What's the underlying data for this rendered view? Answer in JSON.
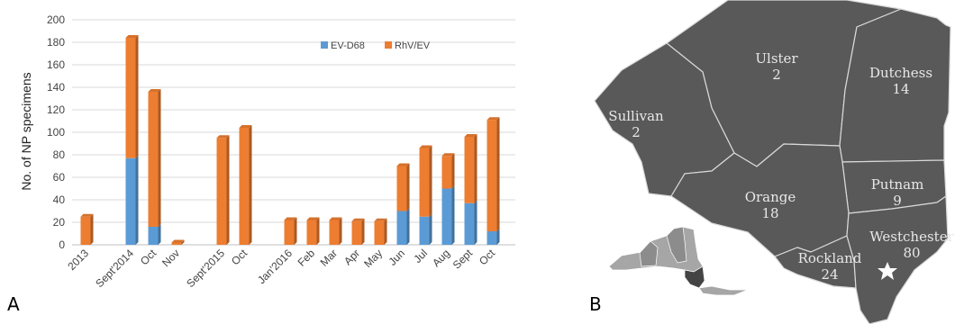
{
  "panels": {
    "a_label": "A",
    "b_label": "B"
  },
  "chart_data": {
    "type": "bar",
    "stacked": true,
    "ylabel": "No. of NP specimens",
    "xlabel": "",
    "ylim": [
      0,
      200
    ],
    "yticks": [
      0,
      20,
      40,
      60,
      80,
      100,
      120,
      140,
      160,
      180,
      200
    ],
    "grid": true,
    "legend_position": "top-right",
    "categories": [
      "2013",
      "Sept'2014",
      "Oct",
      "Nov",
      "Sept'2015",
      "Oct",
      "Jan'2016",
      "Feb",
      "Mar",
      "Apr",
      "May",
      "Jun",
      "Jul",
      "Aug",
      "Sept",
      "Oct"
    ],
    "series": [
      {
        "name": "EV-D68",
        "color": "#5B9BD5",
        "values": [
          0,
          77,
          16,
          0,
          0,
          0,
          0,
          0,
          0,
          0,
          0,
          30,
          25,
          50,
          37,
          12
        ]
      },
      {
        "name": "RhV/EV",
        "color": "#ED7D31",
        "values": [
          25,
          107,
          120,
          2,
          95,
          104,
          22,
          22,
          22,
          21,
          21,
          40,
          61,
          29,
          59,
          99
        ]
      }
    ]
  },
  "map": {
    "fill_color": "#595959",
    "border_color": "#d9d9d9",
    "counties": [
      {
        "name": "Ulster",
        "count": "2"
      },
      {
        "name": "Dutchess",
        "count": "14"
      },
      {
        "name": "Sullivan",
        "count": "2"
      },
      {
        "name": "Putnam",
        "count": "9"
      },
      {
        "name": "Orange",
        "count": "18"
      },
      {
        "name": "Westchester",
        "count": "80"
      },
      {
        "name": "Rockland",
        "count": "24"
      }
    ]
  }
}
